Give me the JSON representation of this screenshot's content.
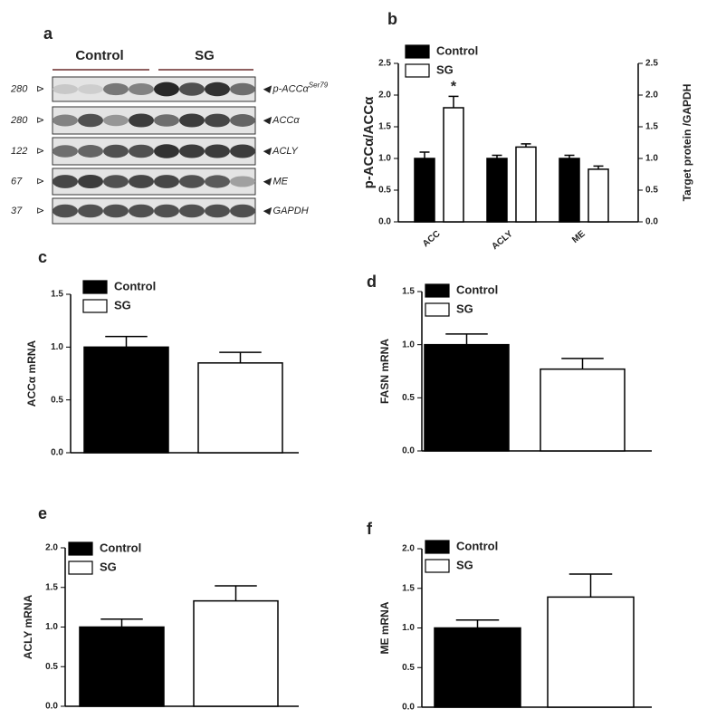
{
  "blot": {
    "panel": "a",
    "groups": [
      "Control",
      "SG"
    ],
    "rows": [
      {
        "mw": "280",
        "label": "p-ACCα",
        "sup": "Ser79"
      },
      {
        "mw": "280",
        "label": "ACCα"
      },
      {
        "mw": "122",
        "label": "ACLY"
      },
      {
        "mw": "67",
        "label": "ME"
      },
      {
        "mw": "37",
        "label": "GAPDH"
      }
    ]
  },
  "chart_data": [
    {
      "type": "bar",
      "panel": "b",
      "y_label": "p-ACCα/ACCα",
      "y2_label": "Target protein /GAPDH",
      "categories": [
        "ACC",
        "ACLY",
        "ME"
      ],
      "series": [
        {
          "name": "Control",
          "color": "#000000",
          "values": [
            1.0,
            1.0,
            1.0
          ],
          "errors": [
            0.1,
            0.05,
            0.05
          ]
        },
        {
          "name": "SG",
          "color": "#ffffff",
          "values": [
            1.8,
            1.18,
            0.83
          ],
          "errors": [
            0.18,
            0.05,
            0.05
          ]
        }
      ],
      "annotations": [
        "*"
      ],
      "ylim": [
        0,
        2.5
      ],
      "yticks": [
        {
          "value": 0,
          "label": "0.0"
        },
        {
          "value": 0.5,
          "label": "0.5"
        },
        {
          "value": 1,
          "label": "1.0"
        },
        {
          "value": 1.5,
          "label": "1.5"
        },
        {
          "value": 2,
          "label": "2.0"
        },
        {
          "value": 2.5,
          "label": "2.5"
        }
      ],
      "y2lim": [
        0,
        2.5
      ],
      "y2ticks": [
        {
          "value": 0,
          "label": "0.0"
        },
        {
          "value": 0.5,
          "label": "0.5"
        },
        {
          "value": 1,
          "label": "1.0"
        },
        {
          "value": 1.5,
          "label": "1.5"
        },
        {
          "value": 2,
          "label": "2.0"
        },
        {
          "value": 2.5,
          "label": "2.5"
        }
      ]
    },
    {
      "type": "bar",
      "panel": "c",
      "y_label": "ACCα mRNA",
      "categories": [
        null
      ],
      "series": [
        {
          "name": "Control",
          "color": "#000000",
          "values": [
            1.0
          ],
          "errors": [
            0.1
          ]
        },
        {
          "name": "SG",
          "color": "#ffffff",
          "values": [
            0.85
          ],
          "errors": [
            0.1
          ]
        }
      ],
      "ylim": [
        0,
        1.5
      ],
      "yticks": [
        {
          "value": 0,
          "label": "0.0"
        },
        {
          "value": 0.5,
          "label": "0.5"
        },
        {
          "value": 1,
          "label": "1.0"
        },
        {
          "value": 1.5,
          "label": "1.5"
        }
      ]
    },
    {
      "type": "bar",
      "panel": "d",
      "y_label": "FASN mRNA",
      "categories": [
        null
      ],
      "series": [
        {
          "name": "Control",
          "color": "#000000",
          "values": [
            1.0
          ],
          "errors": [
            0.1
          ]
        },
        {
          "name": "SG",
          "color": "#ffffff",
          "values": [
            0.77
          ],
          "errors": [
            0.1
          ]
        }
      ],
      "ylim": [
        0,
        1.5
      ],
      "yticks": [
        {
          "value": 0,
          "label": "0.0"
        },
        {
          "value": 0.5,
          "label": "0.5"
        },
        {
          "value": 1,
          "label": "1.0"
        },
        {
          "value": 1.5,
          "label": "1.5"
        }
      ]
    },
    {
      "type": "bar",
      "panel": "e",
      "y_label": "ACLY mRNA",
      "categories": [
        null
      ],
      "series": [
        {
          "name": "Control",
          "color": "#000000",
          "values": [
            1.0
          ],
          "errors": [
            0.1
          ]
        },
        {
          "name": "SG",
          "color": "#ffffff",
          "values": [
            1.33
          ],
          "errors": [
            0.19
          ]
        }
      ],
      "ylim": [
        0,
        2
      ],
      "yticks": [
        {
          "value": 0,
          "label": "0.0"
        },
        {
          "value": 0.5,
          "label": "0.5"
        },
        {
          "value": 1,
          "label": "1.0"
        },
        {
          "value": 1.5,
          "label": "1.5"
        },
        {
          "value": 2,
          "label": "2.0"
        }
      ]
    },
    {
      "type": "bar",
      "panel": "f",
      "y_label": "ME mRNA",
      "categories": [
        null
      ],
      "series": [
        {
          "name": "Control",
          "color": "#000000",
          "values": [
            1.0
          ],
          "errors": [
            0.1
          ]
        },
        {
          "name": "SG",
          "color": "#ffffff",
          "values": [
            1.39
          ],
          "errors": [
            0.29
          ]
        }
      ],
      "ylim": [
        0,
        2
      ],
      "yticks": [
        {
          "value": 0,
          "label": "0.0"
        },
        {
          "value": 0.5,
          "label": "0.5"
        },
        {
          "value": 1,
          "label": "1.0"
        },
        {
          "value": 1.5,
          "label": "1.5"
        },
        {
          "value": 2,
          "label": "2.0"
        }
      ]
    }
  ]
}
